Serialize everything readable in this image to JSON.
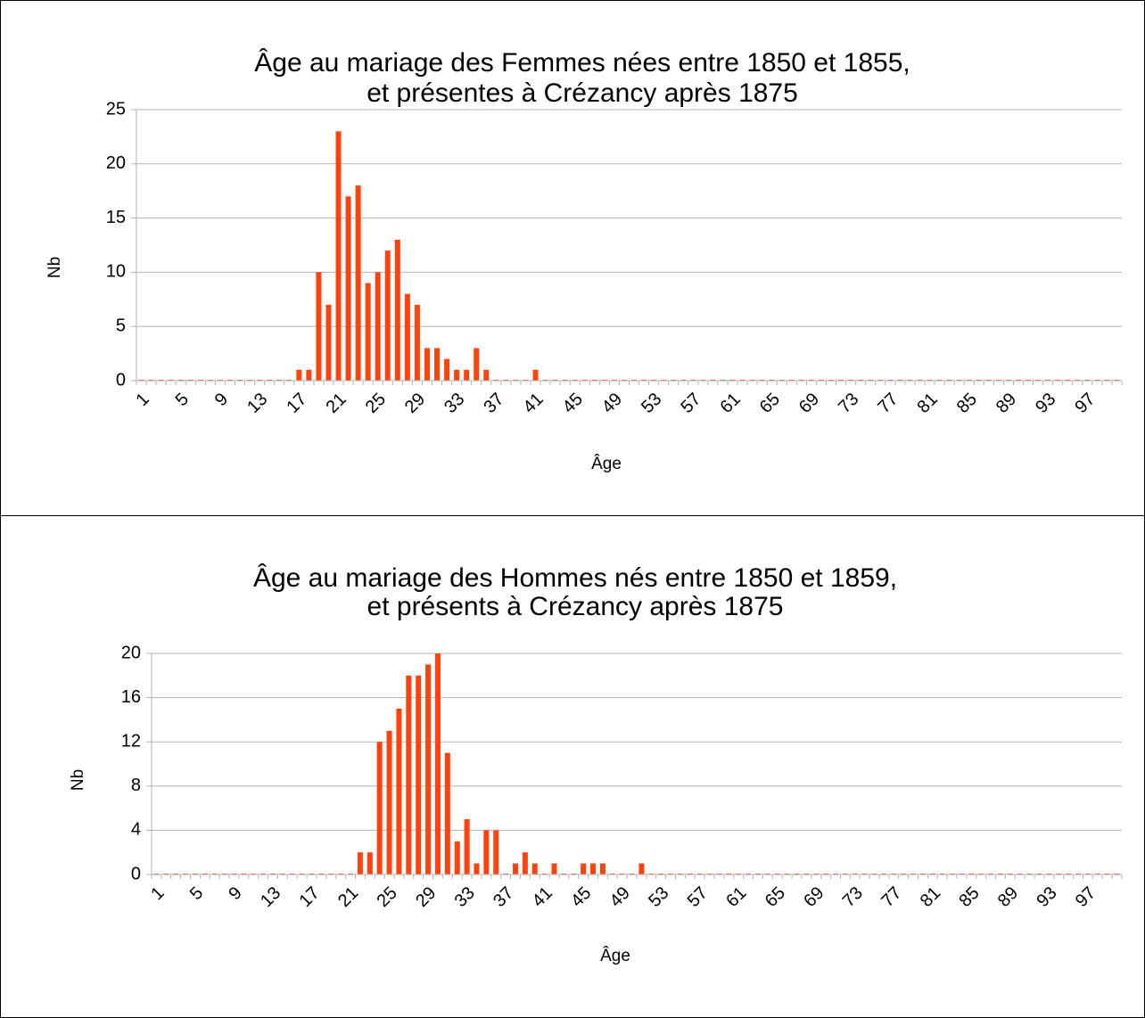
{
  "chart_data": [
    {
      "type": "bar",
      "title": [
        "Âge au mariage des Femmes nées entre 1850 et 1855,",
        "et présentes à Crézancy après 1875"
      ],
      "x_label": "Âge",
      "y_label": "Nb",
      "categories": [
        "1",
        null,
        null,
        null,
        "5",
        null,
        null,
        null,
        "9",
        null,
        null,
        null,
        "13",
        null,
        null,
        null,
        "17",
        null,
        null,
        null,
        "21",
        null,
        null,
        null,
        "25",
        null,
        null,
        null,
        "29",
        null,
        null,
        null,
        "33",
        null,
        null,
        null,
        "37",
        null,
        null,
        null,
        "41",
        null,
        null,
        null,
        "45",
        null,
        null,
        null,
        "49",
        null,
        null,
        null,
        "53",
        null,
        null,
        null,
        "57",
        null,
        null,
        null,
        "61",
        null,
        null,
        null,
        "65",
        null,
        null,
        null,
        "69",
        null,
        null,
        null,
        "73",
        null,
        null,
        null,
        "77",
        null,
        null,
        null,
        "81",
        null,
        null,
        null,
        "85",
        null,
        null,
        null,
        "89",
        null,
        null,
        null,
        "93",
        null,
        null,
        null,
        "97",
        null,
        null,
        null
      ],
      "values": [
        0,
        0,
        0,
        0,
        0,
        0,
        0,
        0,
        0,
        0,
        0,
        0,
        0,
        0,
        0,
        0,
        1,
        1,
        10,
        7,
        23,
        17,
        18,
        9,
        10,
        12,
        13,
        8,
        7,
        3,
        3,
        2,
        1,
        1,
        3,
        1,
        0,
        0,
        0,
        0,
        1,
        0,
        0,
        0,
        0,
        0,
        0,
        0,
        0,
        0,
        0,
        0,
        0,
        0,
        0,
        0,
        0,
        0,
        0,
        0,
        0,
        0,
        0,
        0,
        0,
        0,
        0,
        0,
        0,
        0,
        0,
        0,
        0,
        0,
        0,
        0,
        0,
        0,
        0,
        0,
        0,
        0,
        0,
        0,
        0,
        0,
        0,
        0,
        0,
        0,
        0,
        0,
        0,
        0,
        0,
        0,
        0,
        0,
        0,
        0
      ],
      "color": "#ff420e",
      "ylim": [
        0,
        25
      ],
      "yticks": [
        0,
        5,
        10,
        15,
        20,
        25
      ],
      "grid": true
    },
    {
      "type": "bar",
      "title": [
        "Âge au mariage des Hommes nés entre 1850 et 1859,",
        "et présents à Crézancy après 1875"
      ],
      "x_label": "Âge",
      "y_label": "Nb",
      "categories": [
        "1",
        null,
        null,
        null,
        "5",
        null,
        null,
        null,
        "9",
        null,
        null,
        null,
        "13",
        null,
        null,
        null,
        "17",
        null,
        null,
        null,
        "21",
        null,
        null,
        null,
        "25",
        null,
        null,
        null,
        "29",
        null,
        null,
        null,
        "33",
        null,
        null,
        null,
        "37",
        null,
        null,
        null,
        "41",
        null,
        null,
        null,
        "45",
        null,
        null,
        null,
        "49",
        null,
        null,
        null,
        "53",
        null,
        null,
        null,
        "57",
        null,
        null,
        null,
        "61",
        null,
        null,
        null,
        "65",
        null,
        null,
        null,
        "69",
        null,
        null,
        null,
        "73",
        null,
        null,
        null,
        "77",
        null,
        null,
        null,
        "81",
        null,
        null,
        null,
        "85",
        null,
        null,
        null,
        "89",
        null,
        null,
        null,
        "93",
        null,
        null,
        null,
        "97",
        null,
        null,
        null
      ],
      "values": [
        0,
        0,
        0,
        0,
        0,
        0,
        0,
        0,
        0,
        0,
        0,
        0,
        0,
        0,
        0,
        0,
        0,
        0,
        0,
        0,
        0,
        2,
        2,
        12,
        13,
        15,
        18,
        18,
        19,
        20,
        11,
        3,
        5,
        1,
        4,
        4,
        0,
        1,
        2,
        1,
        0,
        1,
        0,
        0,
        1,
        1,
        1,
        0,
        0,
        0,
        1,
        0,
        0,
        0,
        0,
        0,
        0,
        0,
        0,
        0,
        0,
        0,
        0,
        0,
        0,
        0,
        0,
        0,
        0,
        0,
        0,
        0,
        0,
        0,
        0,
        0,
        0,
        0,
        0,
        0,
        0,
        0,
        0,
        0,
        0,
        0,
        0,
        0,
        0,
        0,
        0,
        0,
        0,
        0,
        0,
        0,
        0,
        0,
        0,
        0
      ],
      "color": "#ff420e",
      "ylim": [
        0,
        20
      ],
      "yticks": [
        0,
        4,
        8,
        12,
        16,
        20
      ],
      "grid": true
    }
  ]
}
